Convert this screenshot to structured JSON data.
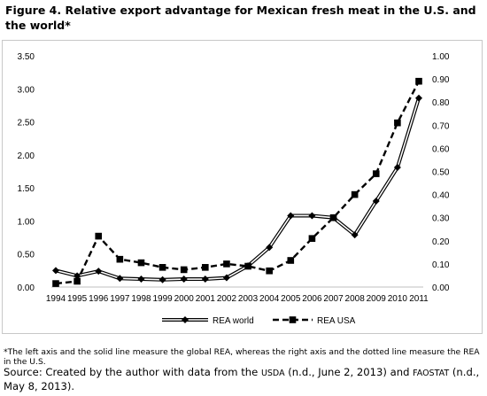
{
  "figure_title": "Figure 4. Relative export advantage for Mexican fresh meat in the U.S. and the world*",
  "footnote": "*The left axis and the solid line measure the global REA, whereas the right axis and the dotted line measure the REA in the U.S.",
  "source": {
    "prefix": "Source: Created by the author with data from the ",
    "usda": "USDA",
    "middle": " (n.d., June 2, 2013) and ",
    "faostat": "FAOSTAT",
    "suffix": " (n.d., May 8, 2013)."
  },
  "chart_data": {
    "type": "line",
    "x": [
      "1994",
      "1995",
      "1996",
      "1997",
      "1998",
      "1999",
      "2000",
      "2001",
      "2002",
      "2003",
      "2004",
      "2005",
      "2006",
      "2007",
      "2008",
      "2009",
      "2010",
      "2011"
    ],
    "y_left_ticks": [
      "0.00",
      "0.50",
      "1.00",
      "1.50",
      "2.00",
      "2.50",
      "3.00",
      "3.50"
    ],
    "y_right_ticks": [
      "0.00",
      "0.10",
      "0.20",
      "0.30",
      "0.40",
      "0.50",
      "0.60",
      "0.70",
      "0.80",
      "0.90",
      "1.00"
    ],
    "ylim_left": [
      0,
      3.5
    ],
    "ylim_right": [
      0,
      1.0
    ],
    "series": [
      {
        "name": "REA world",
        "axis": "left",
        "style": "double-line-diamond",
        "color": "#000000",
        "values": [
          0.25,
          0.17,
          0.24,
          0.13,
          0.12,
          0.11,
          0.12,
          0.12,
          0.14,
          0.32,
          0.6,
          1.08,
          1.08,
          1.05,
          0.79,
          1.3,
          1.81,
          2.86
        ]
      },
      {
        "name": "REA USA",
        "axis": "right",
        "style": "dashed-square",
        "color": "#000000",
        "values": [
          0.015,
          0.025,
          0.22,
          0.12,
          0.105,
          0.085,
          0.075,
          0.085,
          0.1,
          0.09,
          0.07,
          0.115,
          0.21,
          0.3,
          0.4,
          0.49,
          0.71,
          0.89
        ]
      }
    ],
    "grid": false,
    "legend_position": "bottom"
  }
}
